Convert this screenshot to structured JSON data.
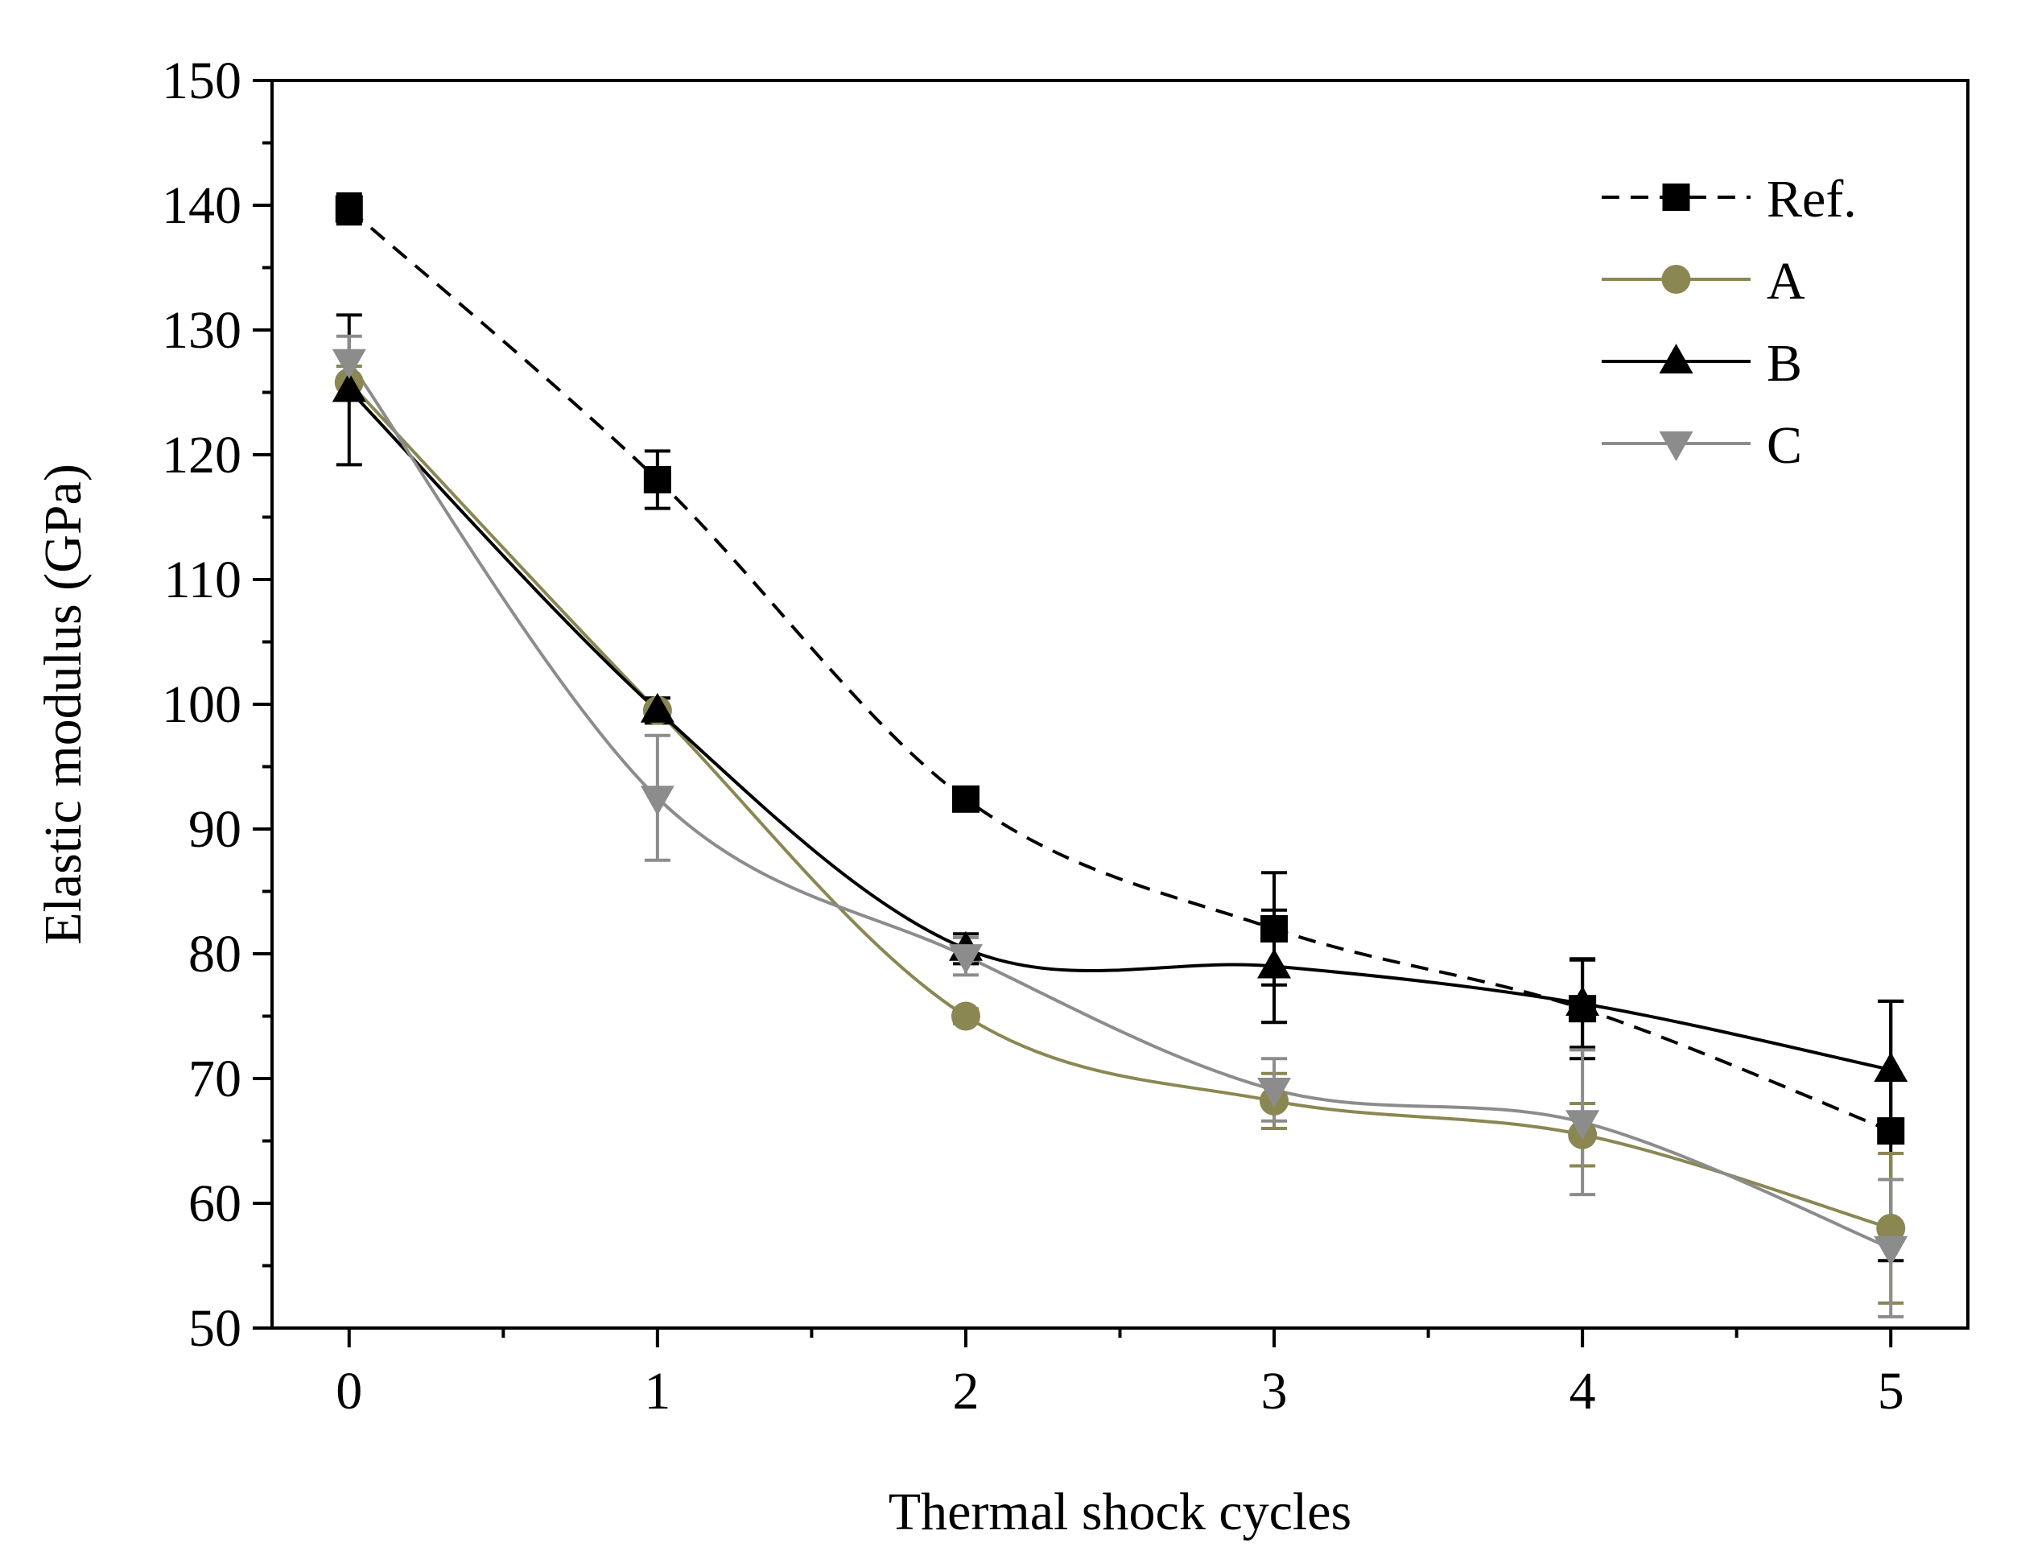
{
  "chart_data": {
    "type": "line",
    "title": "",
    "xlabel": "Thermal shock cycles",
    "ylabel": "Elastic modulus (GPa)",
    "xlim": [
      -0.25,
      5.25
    ],
    "ylim": [
      50,
      150
    ],
    "x_ticks": [
      0,
      1,
      2,
      3,
      4,
      5
    ],
    "y_ticks": [
      50,
      60,
      70,
      80,
      90,
      100,
      110,
      120,
      130,
      140,
      150
    ],
    "grid": false,
    "legend_position": "top-right",
    "x": [
      0,
      1,
      2,
      3,
      4,
      5
    ],
    "series": [
      {
        "name": "Ref.",
        "values": [
          139.7,
          118.0,
          92.4,
          82.0,
          75.6,
          65.8
        ],
        "errors": [
          1.2,
          2.3,
          0.8,
          4.5,
          4.0,
          10.4
        ],
        "color": "#000000",
        "line_style": "dashed",
        "marker": "square"
      },
      {
        "name": "A",
        "values": [
          125.8,
          99.5,
          75.0,
          68.2,
          65.5,
          58.0
        ],
        "errors": [
          1.3,
          1.0,
          0.6,
          2.2,
          2.5,
          6.0
        ],
        "color": "#8a8752",
        "line_style": "solid",
        "marker": "circle"
      },
      {
        "name": "B",
        "values": [
          125.2,
          99.5,
          80.4,
          79.0,
          76.0,
          70.7
        ],
        "errors": [
          6.0,
          1.0,
          1.2,
          4.5,
          3.5,
          5.5
        ],
        "color": "#000000",
        "line_style": "solid",
        "marker": "triangle-up"
      },
      {
        "name": "C",
        "values": [
          127.5,
          92.5,
          79.8,
          69.1,
          66.5,
          56.4
        ],
        "errors": [
          2.0,
          5.0,
          1.5,
          2.5,
          5.8,
          5.5
        ],
        "color": "#8c8c8c",
        "line_style": "solid",
        "marker": "triangle-down"
      }
    ]
  }
}
